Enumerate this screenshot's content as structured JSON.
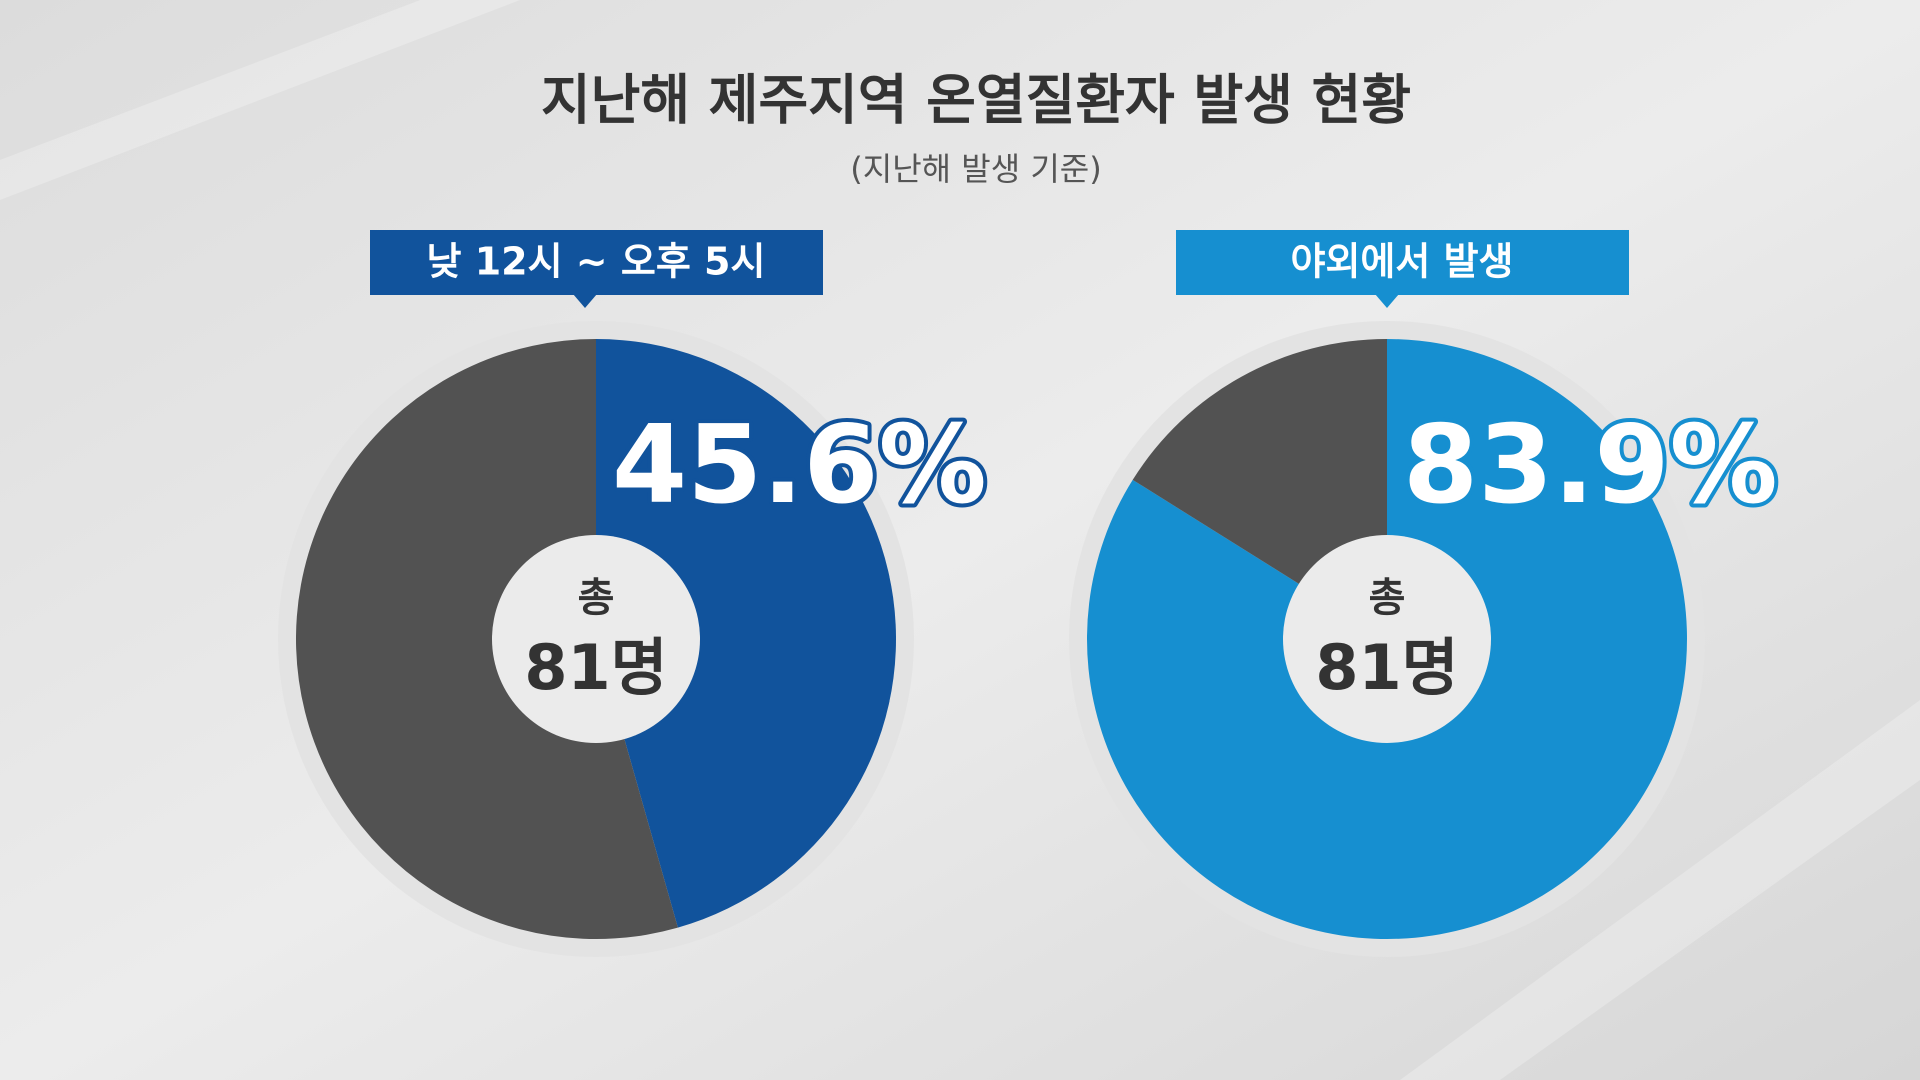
{
  "header": {
    "title": "지난해 제주지역 온열질환자 발생 현황",
    "subtitle": "(지난해 발생 기준)"
  },
  "chart_data": [
    {
      "type": "pie",
      "label": "낮 12시 ~ 오후 5시",
      "values": [
        45.6,
        54.4
      ],
      "value_labels": [
        "45.6%",
        null
      ],
      "colors": [
        "#11539c",
        "#525252"
      ],
      "center_title": "총",
      "center_text": "81명"
    },
    {
      "type": "pie",
      "label": "야외에서 발생",
      "values": [
        83.9,
        16.1
      ],
      "value_labels": [
        "83.9%",
        null
      ],
      "colors": [
        "#168fd0",
        "#525252"
      ],
      "center_title": "총",
      "center_text": "81명"
    }
  ]
}
